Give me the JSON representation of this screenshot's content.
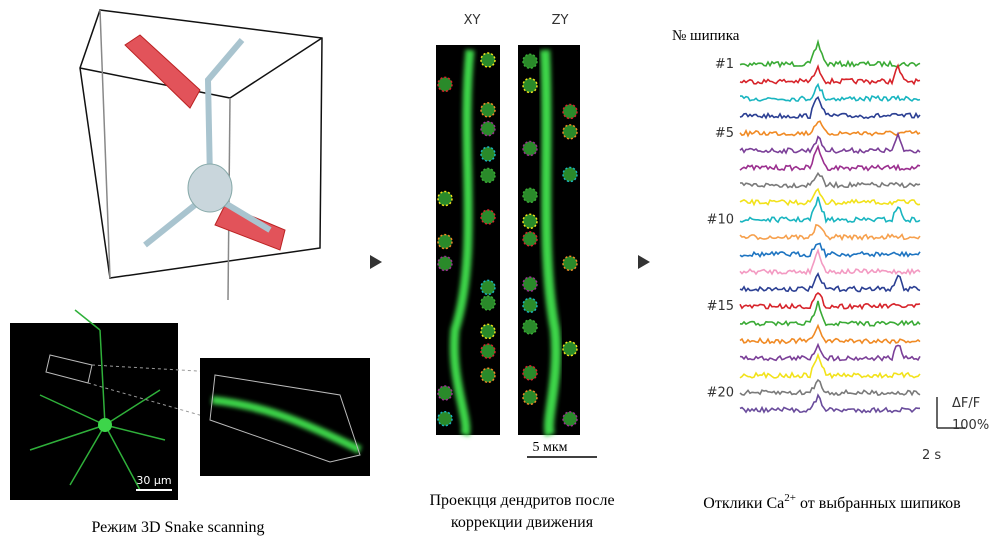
{
  "panel_3d": {
    "caption": "Режим 3D Snake scanning",
    "scale_bar": "30 μm"
  },
  "panel_projection": {
    "labels": [
      "XY",
      "ZY"
    ],
    "scale_bar": "5 мкм",
    "caption_lines": [
      "Проекцця дендритов после",
      "коррекции движения"
    ]
  },
  "panel_traces": {
    "header": "№ шипика",
    "trace_labels": [
      {
        "index": 1,
        "label": "#1"
      },
      {
        "index": 5,
        "label": "#5"
      },
      {
        "index": 10,
        "label": "#10"
      },
      {
        "index": 15,
        "label": "#15"
      },
      {
        "index": 20,
        "label": "#20"
      }
    ],
    "trace_colors": [
      "#3aaa35",
      "#d7232a",
      "#19b5c0",
      "#2b3f93",
      "#f08a24",
      "#7b3f98",
      "#9b2f8f",
      "#7a7a7a",
      "#f2e21a",
      "#19b5c0",
      "#f6a04d",
      "#1d74c1",
      "#f39ac2",
      "#2b3f93",
      "#d7232a",
      "#3aaa35",
      "#f08a24",
      "#7b3f98",
      "#f2e21a",
      "#7a7a7a",
      "#6a4c9c"
    ],
    "scale_y_label": "ΔF/F",
    "scale_y_value": "100%",
    "scale_x_label": "2 s",
    "caption": {
      "before": "Отклики Ca",
      "superscript": "2+",
      "after": " от выбранных шипиков"
    }
  }
}
